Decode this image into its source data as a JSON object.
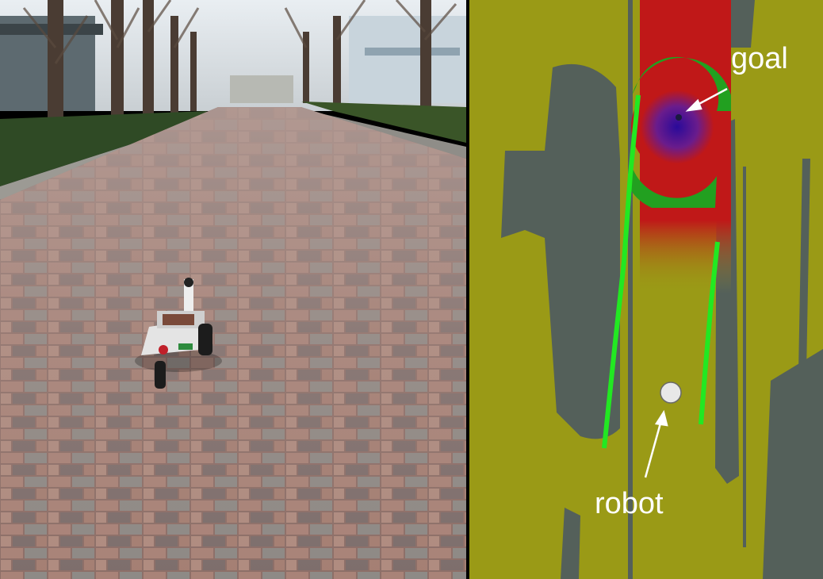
{
  "photo": {
    "scene": "brick-paved-walkway-with-robot",
    "colors": {
      "brick": "#9a7c74",
      "hedge": "#2f4a25",
      "sky": "#dde4ea"
    }
  },
  "map": {
    "labels": {
      "goal": "goal",
      "robot": "robot"
    },
    "colors": {
      "free_space": "#9a9a16",
      "obstacle": "#54605a",
      "path_edge": "#22e822",
      "goal_ring": "#22a020",
      "cost_high": "#c01818",
      "cost_low": "#3010a0",
      "robot_marker": "#e8e8e8",
      "annotation": "#ffffff"
    }
  }
}
